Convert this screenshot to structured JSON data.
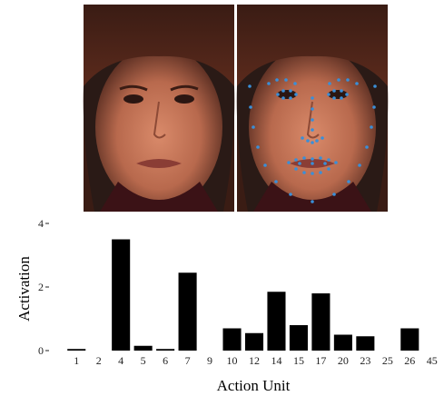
{
  "images": [
    {
      "kind": "photo",
      "subject": "face"
    },
    {
      "kind": "photo",
      "subject": "face-with-landmarks",
      "landmark_color": "#3a8fd8"
    }
  ],
  "chart_data": {
    "type": "bar",
    "categories": [
      "1",
      "2",
      "4",
      "5",
      "6",
      "7",
      "9",
      "10",
      "12",
      "14",
      "15",
      "17",
      "20",
      "23",
      "25",
      "26",
      "45"
    ],
    "values": [
      0.05,
      0.0,
      3.5,
      0.15,
      0.05,
      2.45,
      0.0,
      0.7,
      0.55,
      1.85,
      0.8,
      1.8,
      0.5,
      0.45,
      0.0,
      0.7,
      0.0
    ],
    "title": "",
    "xlabel": "Action Unit",
    "ylabel": "Activation",
    "ylim": [
      0,
      4
    ],
    "yticks": [
      "0",
      "2",
      "4"
    ],
    "bar_color": "#000000",
    "grid": false
  }
}
